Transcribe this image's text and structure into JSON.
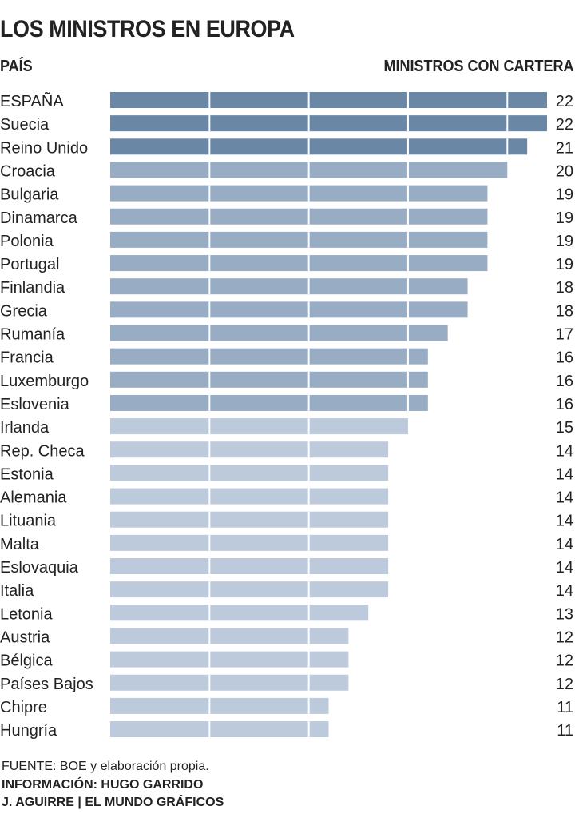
{
  "chart_data": {
    "type": "bar",
    "orientation": "horizontal",
    "title": "LOS MINISTROS EN EUROPA",
    "category_header": "PAÍS",
    "value_header": "MINISTROS CON CARTERA",
    "xlim": [
      0,
      22
    ],
    "grid": true,
    "grid_step": 5,
    "colors": {
      "high": "#6a87a6",
      "mid": "#98acc3",
      "low": "#bccadb"
    },
    "categories": [
      "ESPAÑA",
      "Suecia",
      "Reino Unido",
      "Croacia",
      "Bulgaria",
      "Dinamarca",
      "Polonia",
      "Portugal",
      "Finlandia",
      "Grecia",
      "Rumanía",
      "Francia",
      "Luxemburgo",
      "Eslovenia",
      "Irlanda",
      "Rep. Checa",
      "Estonia",
      "Alemania",
      "Lituania",
      "Malta",
      "Eslovaquia",
      "Italia",
      "Letonia",
      "Austria",
      "Bélgica",
      "Países Bajos",
      "Chipre",
      "Hungría"
    ],
    "values": [
      22,
      22,
      21,
      20,
      19,
      19,
      19,
      19,
      18,
      18,
      17,
      16,
      16,
      16,
      15,
      14,
      14,
      14,
      14,
      14,
      14,
      14,
      13,
      12,
      12,
      12,
      11,
      11
    ]
  },
  "footer": {
    "source": "FUENTE: BOE y elaboración propia.",
    "info": "INFORMACIÓN: HUGO GARRIDO",
    "credits": "J. AGUIRRE | EL MUNDO GRÁFICOS"
  }
}
